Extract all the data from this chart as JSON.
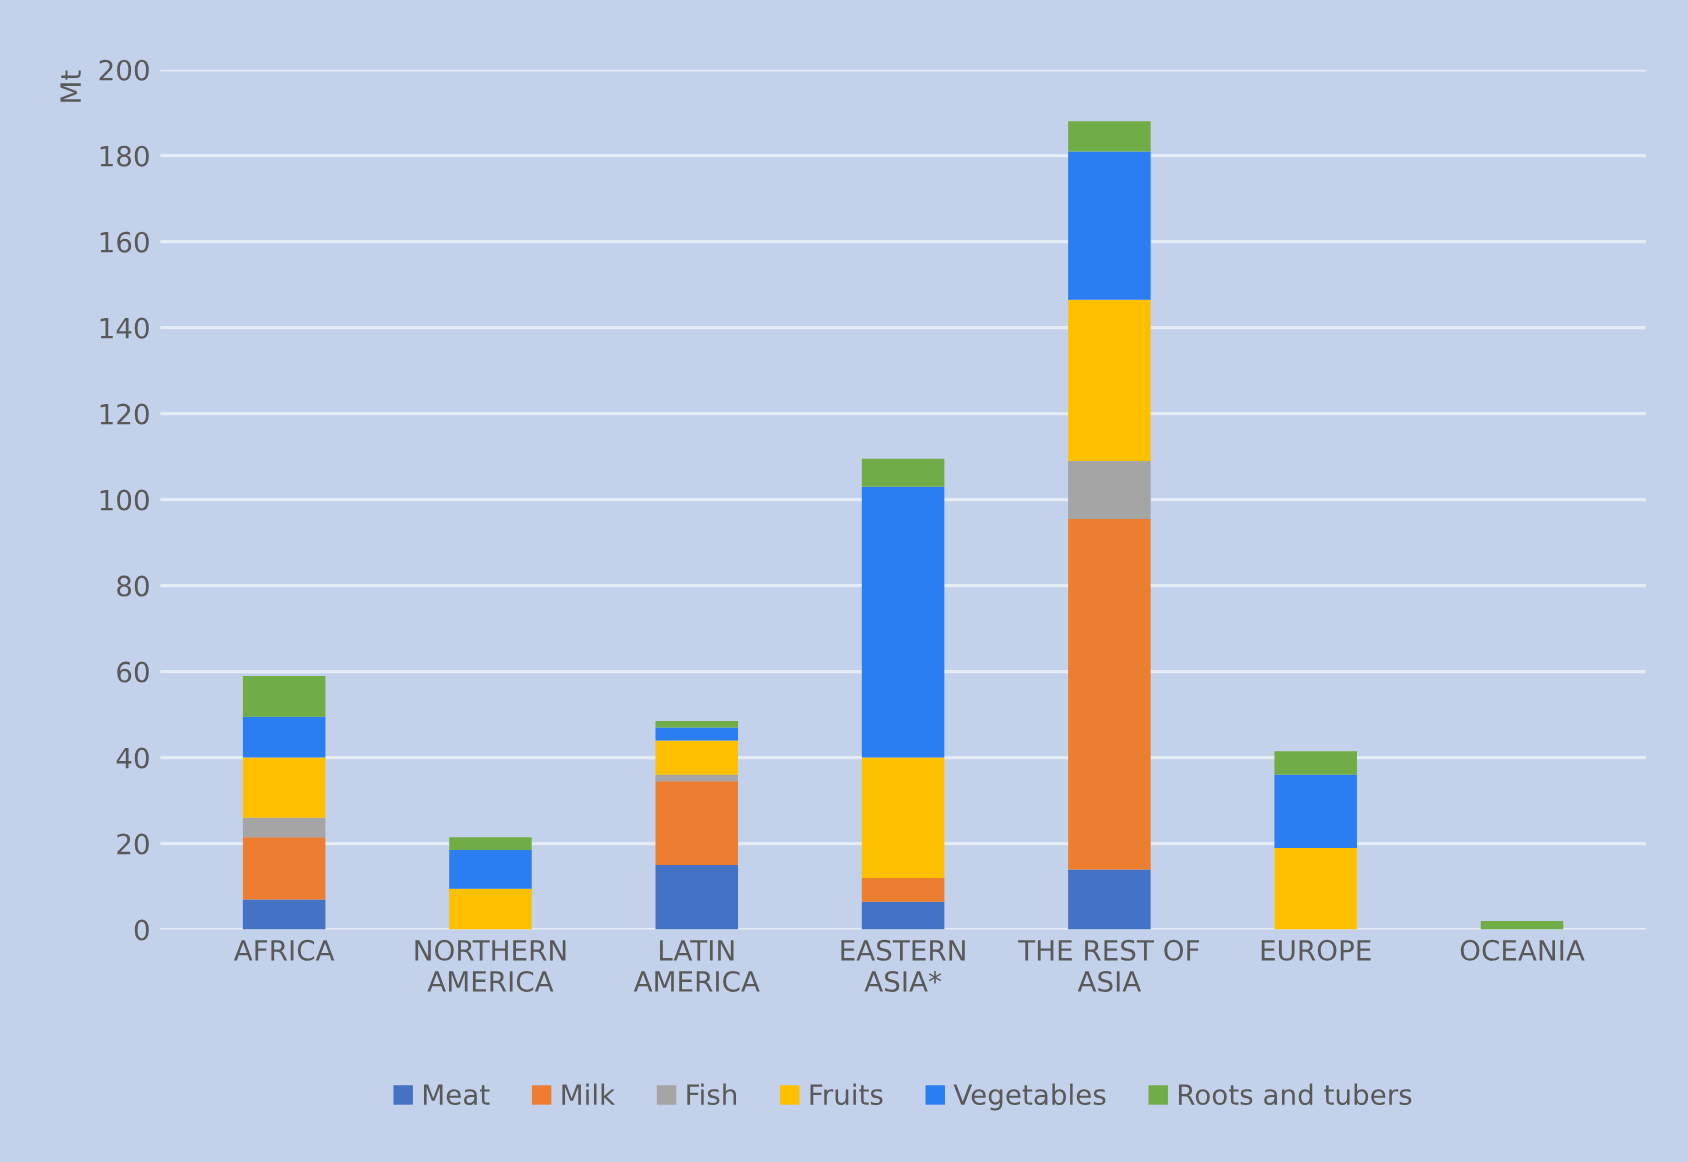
{
  "chart_data": {
    "type": "bar",
    "stacked": true,
    "ylabel": "Mt",
    "categories": [
      "AFRICA",
      "NORTHERN\nAMERICA",
      "LATIN\nAMERICA",
      "EASTERN\nASIA*",
      "THE REST OF\nASIA",
      "EUROPE",
      "OCEANIA"
    ],
    "series": [
      {
        "name": "Meat",
        "color": "#4472c4",
        "values": [
          7,
          0,
          15,
          6.5,
          14,
          0,
          0
        ]
      },
      {
        "name": "Milk",
        "color": "#ed7d31",
        "values": [
          14.5,
          0,
          19.5,
          5.5,
          81.5,
          0,
          0
        ]
      },
      {
        "name": "Fish",
        "color": "#a5a5a5",
        "values": [
          4.5,
          0,
          1.5,
          0,
          13.5,
          0,
          0
        ]
      },
      {
        "name": "Fruits",
        "color": "#ffc000",
        "values": [
          14,
          9.5,
          8,
          28,
          37.5,
          19,
          0
        ]
      },
      {
        "name": "Vegetables",
        "color": "#2a7ef2",
        "values": [
          9.5,
          9,
          3,
          63,
          34.5,
          17,
          0
        ]
      },
      {
        "name": "Roots and tubers",
        "color": "#70ad47",
        "values": [
          9.5,
          3,
          1.5,
          6.5,
          7,
          5.5,
          2
        ]
      }
    ],
    "ylim": [
      0,
      200
    ],
    "yticks": [
      0,
      20,
      40,
      60,
      80,
      100,
      120,
      140,
      160,
      180,
      200
    ],
    "grid": "y",
    "legend": "bottom"
  }
}
